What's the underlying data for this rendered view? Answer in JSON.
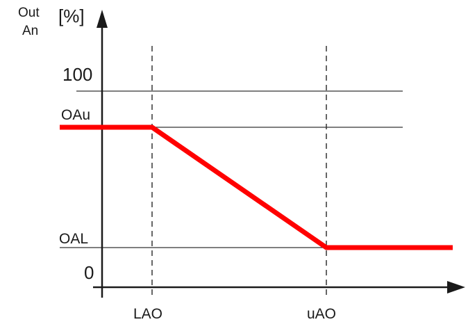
{
  "diagram": {
    "y_axis_label_line1": "Out",
    "y_axis_label_line2": "An",
    "y_axis_unit": "[%]",
    "y_levels": {
      "max": "100",
      "upper": "OAu",
      "lower": "OAL",
      "zero": "0"
    },
    "x_points": {
      "left": "LAO",
      "right": "uAO"
    }
  },
  "colors": {
    "curve": "#ff0000",
    "axes": "#1a1a1a",
    "guides": "#333333"
  }
}
